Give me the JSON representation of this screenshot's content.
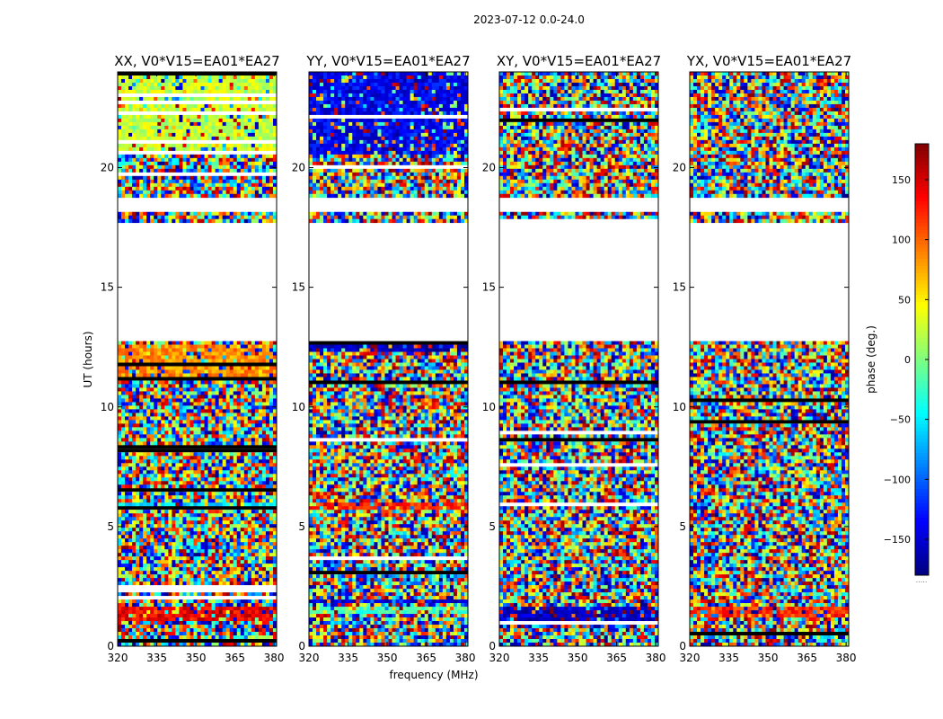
{
  "figure": {
    "suptitle": "2023-07-12 0.0-24.0",
    "ylabel": "UT (hours)",
    "xlabel": "frequency (MHz)",
    "colorbar_label": "phase (deg.)",
    "colorbar_footer": "....."
  },
  "chart_data": {
    "type": "heatmap",
    "value_quantity": "phase (deg.)",
    "colormap": "jet",
    "color_range": [
      -180,
      180
    ],
    "colorbar_ticks": [
      -150,
      -100,
      -50,
      0,
      50,
      100,
      150
    ],
    "xlim": [
      320,
      381
    ],
    "ylim": [
      0,
      24
    ],
    "x_ticks": [
      320,
      335,
      350,
      365,
      380
    ],
    "y_ticks": [
      0,
      5,
      10,
      15,
      20
    ],
    "no_data_ut_ranges": [
      [
        12.8,
        17.7
      ],
      [
        18.2,
        18.8
      ]
    ],
    "panels": [
      {
        "title": "XX, V0*V15=EA01*EA27",
        "coherent_bands": [
          {
            "ut": [
              20.6,
              24.0
            ],
            "phase": 25
          },
          {
            "ut": [
              11.2,
              12.6
            ],
            "phase": 85
          },
          {
            "ut": [
              5.7,
              6.0
            ],
            "phase": -55
          },
          {
            "ut": [
              1.1,
              1.6
            ],
            "phase": 140
          }
        ]
      },
      {
        "title": "YY, V0*V15=EA01*EA27",
        "coherent_bands": [
          {
            "ut": [
              20.6,
              24.0
            ],
            "phase": -140
          },
          {
            "ut": [
              12.3,
              12.8
            ],
            "phase": -160
          },
          {
            "ut": [
              5.7,
              6.0
            ],
            "phase": 120
          },
          {
            "ut": [
              1.4,
              1.7
            ],
            "phase": -20
          },
          {
            "ut": [
              1.8,
              2.0
            ],
            "phase": -150
          }
        ]
      },
      {
        "title": "XY, V0*V15=EA01*EA27",
        "coherent_bands": [
          {
            "ut": [
              1.1,
              1.6
            ],
            "phase": -160
          }
        ]
      },
      {
        "title": "YX, V0*V15=EA01*EA27",
        "coherent_bands": [
          {
            "ut": [
              1.2,
              1.6
            ],
            "phase": 120
          }
        ]
      }
    ]
  }
}
